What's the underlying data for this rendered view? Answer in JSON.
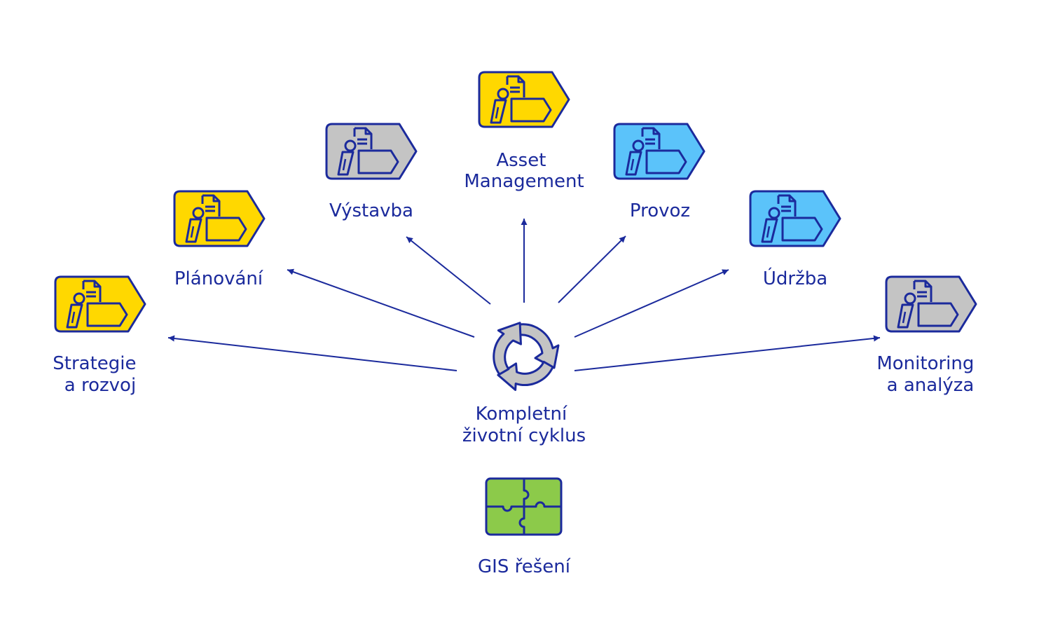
{
  "colors": {
    "stroke": "#1b2a9c",
    "yellow": "#ffd800",
    "grey": "#c4c4c4",
    "blue": "#5bc3fa",
    "green": "#8cca4a",
    "cycle": "#c4c4c4"
  },
  "center": {
    "icon": "recycle-arrows-icon",
    "label_lines": [
      "Kompletní",
      "životní cyklus"
    ]
  },
  "gis": {
    "icon": "puzzle-icon",
    "label_lines": [
      "GIS řešení"
    ]
  },
  "nodes": [
    {
      "id": "strategie",
      "label_lines": [
        "Strategie",
        "a rozvoj"
      ],
      "color": "yellow",
      "icon": "asset-tag-icon"
    },
    {
      "id": "planovani",
      "label_lines": [
        "Plánování"
      ],
      "color": "yellow",
      "icon": "asset-tag-icon"
    },
    {
      "id": "vystavba",
      "label_lines": [
        "Výstavba"
      ],
      "color": "grey",
      "icon": "asset-tag-icon"
    },
    {
      "id": "asset",
      "label_lines": [
        "Asset",
        "Management"
      ],
      "color": "yellow",
      "icon": "asset-tag-icon"
    },
    {
      "id": "provoz",
      "label_lines": [
        "Provoz"
      ],
      "color": "blue",
      "icon": "asset-tag-icon"
    },
    {
      "id": "udrzba",
      "label_lines": [
        "Údržba"
      ],
      "color": "blue",
      "icon": "asset-tag-icon"
    },
    {
      "id": "monitoring",
      "label_lines": [
        "Monitoring",
        "a analýza"
      ],
      "color": "grey",
      "icon": "asset-tag-icon"
    }
  ]
}
